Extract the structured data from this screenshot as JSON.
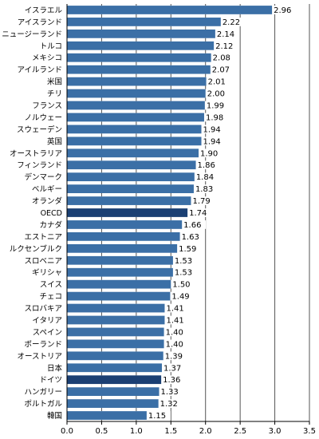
{
  "chart_data": {
    "type": "bar",
    "orientation": "horizontal",
    "categories": [
      "イスラエル",
      "アイスランド",
      "ニュージーランド",
      "トルコ",
      "メキシコ",
      "アイルランド",
      "米国",
      "チリ",
      "フランス",
      "ノルウェー",
      "スウェーデン",
      "英国",
      "オーストラリア",
      "フィンランド",
      "デンマーク",
      "ベルギー",
      "オランダ",
      "OECD",
      "カナダ",
      "エストニア",
      "ルクセンブルク",
      "スロベニア",
      "ギリシャ",
      "スイス",
      "チェコ",
      "スロバキア",
      "イタリア",
      "スペイン",
      "ポーランド",
      "オーストリア",
      "日本",
      "ドイツ",
      "ハンガリー",
      "ポルトガル",
      "韓国"
    ],
    "values": [
      2.96,
      2.22,
      2.14,
      2.12,
      2.08,
      2.07,
      2.01,
      2.0,
      1.99,
      1.98,
      1.94,
      1.94,
      1.9,
      1.86,
      1.84,
      1.83,
      1.79,
      1.74,
      1.66,
      1.63,
      1.59,
      1.53,
      1.53,
      1.5,
      1.49,
      1.41,
      1.41,
      1.4,
      1.4,
      1.39,
      1.37,
      1.36,
      1.33,
      1.32,
      1.15
    ],
    "value_labels": [
      "2.96",
      "2.22",
      "2.14",
      "2.12",
      "2.08",
      "2.07",
      "2.01",
      "2.00",
      "1.99",
      "1.98",
      "1.94",
      "1.94",
      "1.90",
      "1.86",
      "1.84",
      "1.83",
      "1.79",
      "1.74",
      "1.66",
      "1.63",
      "1.59",
      "1.53",
      "1.53",
      "1.50",
      "1.49",
      "1.41",
      "1.41",
      "1.40",
      "1.40",
      "1.39",
      "1.37",
      "1.36",
      "1.33",
      "1.32",
      "1.15"
    ],
    "highlighted": [
      "OECD",
      "ドイツ"
    ],
    "xlim": [
      0,
      3.5
    ],
    "xticks": [
      "0.0",
      "0.5",
      "1.0",
      "1.5",
      "2.0",
      "2.5",
      "3.0",
      "3.5"
    ],
    "grid": "vertical",
    "colors": {
      "bar": "#3b6fa6",
      "highlight": "#1a3f73",
      "grid": "#555555",
      "axis": "#000000"
    }
  }
}
